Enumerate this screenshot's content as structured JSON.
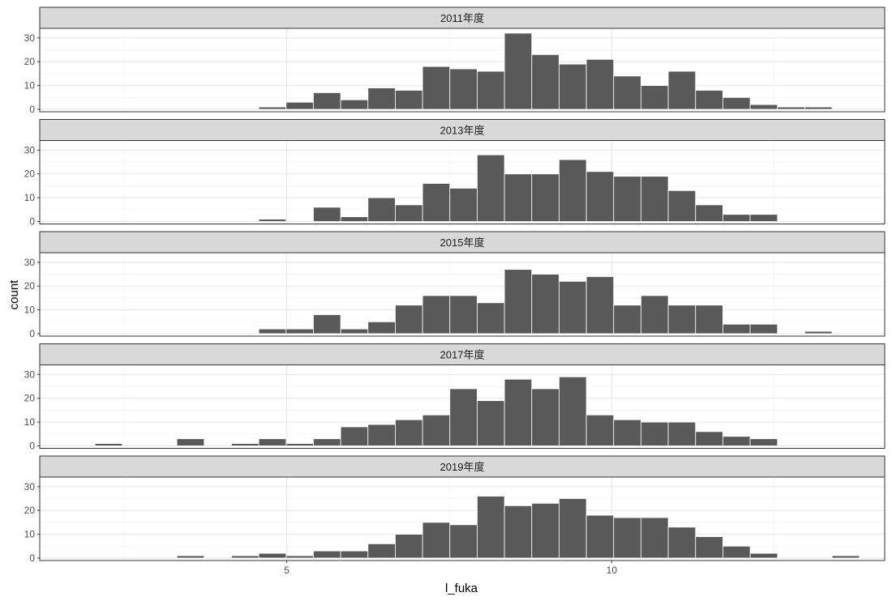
{
  "chart_data": {
    "type": "bar",
    "subtype": "faceted-histogram",
    "xlabel": "l_fuka",
    "ylabel": "count",
    "xlim": [
      1.2,
      14.2
    ],
    "ylim": [
      0,
      33
    ],
    "x_ticks": [
      5,
      10
    ],
    "y_ticks": [
      0,
      10,
      20,
      30
    ],
    "bin_width": 0.42,
    "bar_color": "#595959",
    "grid": true,
    "facets": [
      {
        "label": "2011年度",
        "bins": [
          {
            "x": 4.78,
            "count": 1
          },
          {
            "x": 5.2,
            "count": 3
          },
          {
            "x": 5.62,
            "count": 7
          },
          {
            "x": 6.04,
            "count": 4
          },
          {
            "x": 6.46,
            "count": 9
          },
          {
            "x": 6.88,
            "count": 8
          },
          {
            "x": 7.3,
            "count": 18
          },
          {
            "x": 7.72,
            "count": 17
          },
          {
            "x": 8.14,
            "count": 16
          },
          {
            "x": 8.56,
            "count": 32
          },
          {
            "x": 8.98,
            "count": 23
          },
          {
            "x": 9.4,
            "count": 19
          },
          {
            "x": 9.82,
            "count": 21
          },
          {
            "x": 10.24,
            "count": 14
          },
          {
            "x": 10.66,
            "count": 10
          },
          {
            "x": 11.08,
            "count": 16
          },
          {
            "x": 11.5,
            "count": 8
          },
          {
            "x": 11.92,
            "count": 5
          },
          {
            "x": 12.34,
            "count": 2
          },
          {
            "x": 12.76,
            "count": 1
          },
          {
            "x": 13.18,
            "count": 1
          }
        ]
      },
      {
        "label": "2013年度",
        "bins": [
          {
            "x": 4.78,
            "count": 1
          },
          {
            "x": 5.62,
            "count": 6
          },
          {
            "x": 6.04,
            "count": 2
          },
          {
            "x": 6.46,
            "count": 10
          },
          {
            "x": 6.88,
            "count": 7
          },
          {
            "x": 7.3,
            "count": 16
          },
          {
            "x": 7.72,
            "count": 14
          },
          {
            "x": 8.14,
            "count": 28
          },
          {
            "x": 8.56,
            "count": 20
          },
          {
            "x": 8.98,
            "count": 20
          },
          {
            "x": 9.4,
            "count": 26
          },
          {
            "x": 9.82,
            "count": 21
          },
          {
            "x": 10.24,
            "count": 19
          },
          {
            "x": 10.66,
            "count": 19
          },
          {
            "x": 11.08,
            "count": 13
          },
          {
            "x": 11.5,
            "count": 7
          },
          {
            "x": 11.92,
            "count": 3
          },
          {
            "x": 12.34,
            "count": 3
          }
        ]
      },
      {
        "label": "2015年度",
        "bins": [
          {
            "x": 4.78,
            "count": 2
          },
          {
            "x": 5.2,
            "count": 2
          },
          {
            "x": 5.62,
            "count": 8
          },
          {
            "x": 6.04,
            "count": 2
          },
          {
            "x": 6.46,
            "count": 5
          },
          {
            "x": 6.88,
            "count": 12
          },
          {
            "x": 7.3,
            "count": 16
          },
          {
            "x": 7.72,
            "count": 16
          },
          {
            "x": 8.14,
            "count": 13
          },
          {
            "x": 8.56,
            "count": 27
          },
          {
            "x": 8.98,
            "count": 25
          },
          {
            "x": 9.4,
            "count": 22
          },
          {
            "x": 9.82,
            "count": 24
          },
          {
            "x": 10.24,
            "count": 12
          },
          {
            "x": 10.66,
            "count": 16
          },
          {
            "x": 11.08,
            "count": 12
          },
          {
            "x": 11.5,
            "count": 12
          },
          {
            "x": 11.92,
            "count": 4
          },
          {
            "x": 12.34,
            "count": 4
          },
          {
            "x": 13.18,
            "count": 1
          }
        ]
      },
      {
        "label": "2017年度",
        "bins": [
          {
            "x": 2.26,
            "count": 1
          },
          {
            "x": 3.52,
            "count": 3
          },
          {
            "x": 4.36,
            "count": 1
          },
          {
            "x": 5.2,
            "count": 1
          },
          {
            "x": 4.78,
            "count": 3
          },
          {
            "x": 5.62,
            "count": 3
          },
          {
            "x": 6.04,
            "count": 8
          },
          {
            "x": 6.46,
            "count": 9
          },
          {
            "x": 6.88,
            "count": 11
          },
          {
            "x": 7.3,
            "count": 13
          },
          {
            "x": 7.72,
            "count": 24
          },
          {
            "x": 8.14,
            "count": 19
          },
          {
            "x": 8.56,
            "count": 28
          },
          {
            "x": 8.98,
            "count": 24
          },
          {
            "x": 9.4,
            "count": 29
          },
          {
            "x": 9.82,
            "count": 13
          },
          {
            "x": 10.24,
            "count": 11
          },
          {
            "x": 10.66,
            "count": 10
          },
          {
            "x": 11.08,
            "count": 10
          },
          {
            "x": 11.5,
            "count": 6
          },
          {
            "x": 11.92,
            "count": 4
          },
          {
            "x": 12.34,
            "count": 3
          },
          {
            "x": 4.36,
            "count": 1
          }
        ]
      },
      {
        "label": "2019年度",
        "bins": [
          {
            "x": 3.52,
            "count": 1
          },
          {
            "x": 4.36,
            "count": 1
          },
          {
            "x": 4.78,
            "count": 2
          },
          {
            "x": 5.2,
            "count": 1
          },
          {
            "x": 5.62,
            "count": 3
          },
          {
            "x": 6.04,
            "count": 3
          },
          {
            "x": 6.46,
            "count": 6
          },
          {
            "x": 6.88,
            "count": 10
          },
          {
            "x": 7.3,
            "count": 15
          },
          {
            "x": 7.72,
            "count": 14
          },
          {
            "x": 8.14,
            "count": 26
          },
          {
            "x": 8.56,
            "count": 22
          },
          {
            "x": 8.98,
            "count": 23
          },
          {
            "x": 9.4,
            "count": 25
          },
          {
            "x": 9.82,
            "count": 18
          },
          {
            "x": 10.24,
            "count": 17
          },
          {
            "x": 10.66,
            "count": 17
          },
          {
            "x": 11.08,
            "count": 13
          },
          {
            "x": 11.5,
            "count": 9
          },
          {
            "x": 11.92,
            "count": 5
          },
          {
            "x": 12.34,
            "count": 2
          },
          {
            "x": 13.6,
            "count": 1
          }
        ]
      }
    ]
  }
}
